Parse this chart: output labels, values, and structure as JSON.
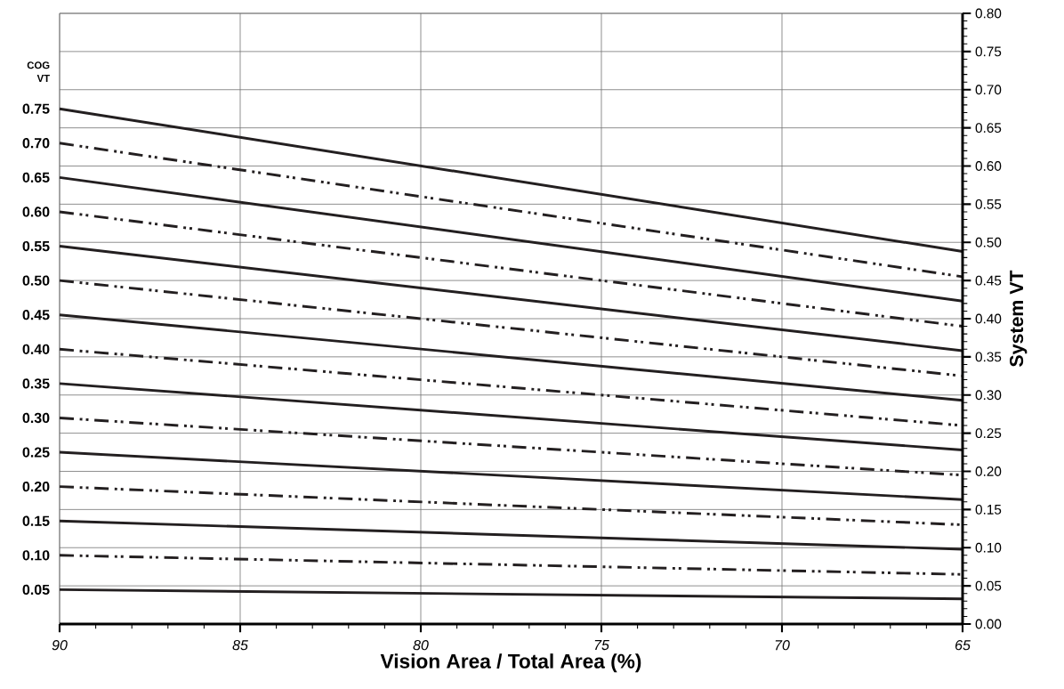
{
  "chart_data": {
    "type": "line",
    "xlabel": "Vision Area / Total Area (%)",
    "ylabel": "System VT",
    "legend_title": "COG VT",
    "x": [
      90,
      65
    ],
    "xlim": [
      90,
      65
    ],
    "xticks": [
      90,
      85,
      80,
      75,
      70,
      65
    ],
    "ylim": [
      0,
      0.8
    ],
    "yticks": [
      {
        "value": 0,
        "label": "0.00"
      },
      {
        "value": 0.05,
        "label": "0.05"
      },
      {
        "value": 0.1,
        "label": "0.10"
      },
      {
        "value": 0.15,
        "label": "0.15"
      },
      {
        "value": 0.2,
        "label": "0.20"
      },
      {
        "value": 0.25,
        "label": "0.25"
      },
      {
        "value": 0.3,
        "label": "0.30"
      },
      {
        "value": 0.35,
        "label": "0.35"
      },
      {
        "value": 0.4,
        "label": "0.40"
      },
      {
        "value": 0.45,
        "label": "0.45"
      },
      {
        "value": 0.5,
        "label": "0.50"
      },
      {
        "value": 0.55,
        "label": "0.55"
      },
      {
        "value": 0.6,
        "label": "0.60"
      },
      {
        "value": 0.65,
        "label": "0.65"
      },
      {
        "value": 0.7,
        "label": "0.70"
      },
      {
        "value": 0.75,
        "label": "0.75"
      },
      {
        "value": 0.8,
        "label": "0.80"
      }
    ],
    "grid": true,
    "series": [
      {
        "name": "0.75",
        "color": "#231f20",
        "line_style": "solid",
        "values": [
          0.675,
          0.488
        ]
      },
      {
        "name": "0.70",
        "color": "#231f20",
        "line_style": "dashed",
        "values": [
          0.63,
          0.455
        ]
      },
      {
        "name": "0.65",
        "color": "#231f20",
        "line_style": "solid",
        "values": [
          0.585,
          0.423
        ]
      },
      {
        "name": "0.60",
        "color": "#231f20",
        "line_style": "dashed",
        "values": [
          0.54,
          0.39
        ]
      },
      {
        "name": "0.55",
        "color": "#231f20",
        "line_style": "solid",
        "values": [
          0.495,
          0.358
        ]
      },
      {
        "name": "0.50",
        "color": "#231f20",
        "line_style": "dashed",
        "values": [
          0.45,
          0.325
        ]
      },
      {
        "name": "0.45",
        "color": "#231f20",
        "line_style": "solid",
        "values": [
          0.405,
          0.293
        ]
      },
      {
        "name": "0.40",
        "color": "#231f20",
        "line_style": "dashed",
        "values": [
          0.36,
          0.26
        ]
      },
      {
        "name": "0.35",
        "color": "#231f20",
        "line_style": "solid",
        "values": [
          0.315,
          0.228
        ]
      },
      {
        "name": "0.30",
        "color": "#231f20",
        "line_style": "dashed",
        "values": [
          0.27,
          0.195
        ]
      },
      {
        "name": "0.25",
        "color": "#231f20",
        "line_style": "solid",
        "values": [
          0.225,
          0.163
        ]
      },
      {
        "name": "0.20",
        "color": "#231f20",
        "line_style": "dashed",
        "values": [
          0.18,
          0.13
        ]
      },
      {
        "name": "0.15",
        "color": "#231f20",
        "line_style": "solid",
        "values": [
          0.135,
          0.098
        ]
      },
      {
        "name": "0.10",
        "color": "#231f20",
        "line_style": "dashed",
        "values": [
          0.09,
          0.065
        ]
      },
      {
        "name": "0.05",
        "color": "#231f20",
        "line_style": "solid",
        "values": [
          0.045,
          0.033
        ]
      }
    ]
  }
}
